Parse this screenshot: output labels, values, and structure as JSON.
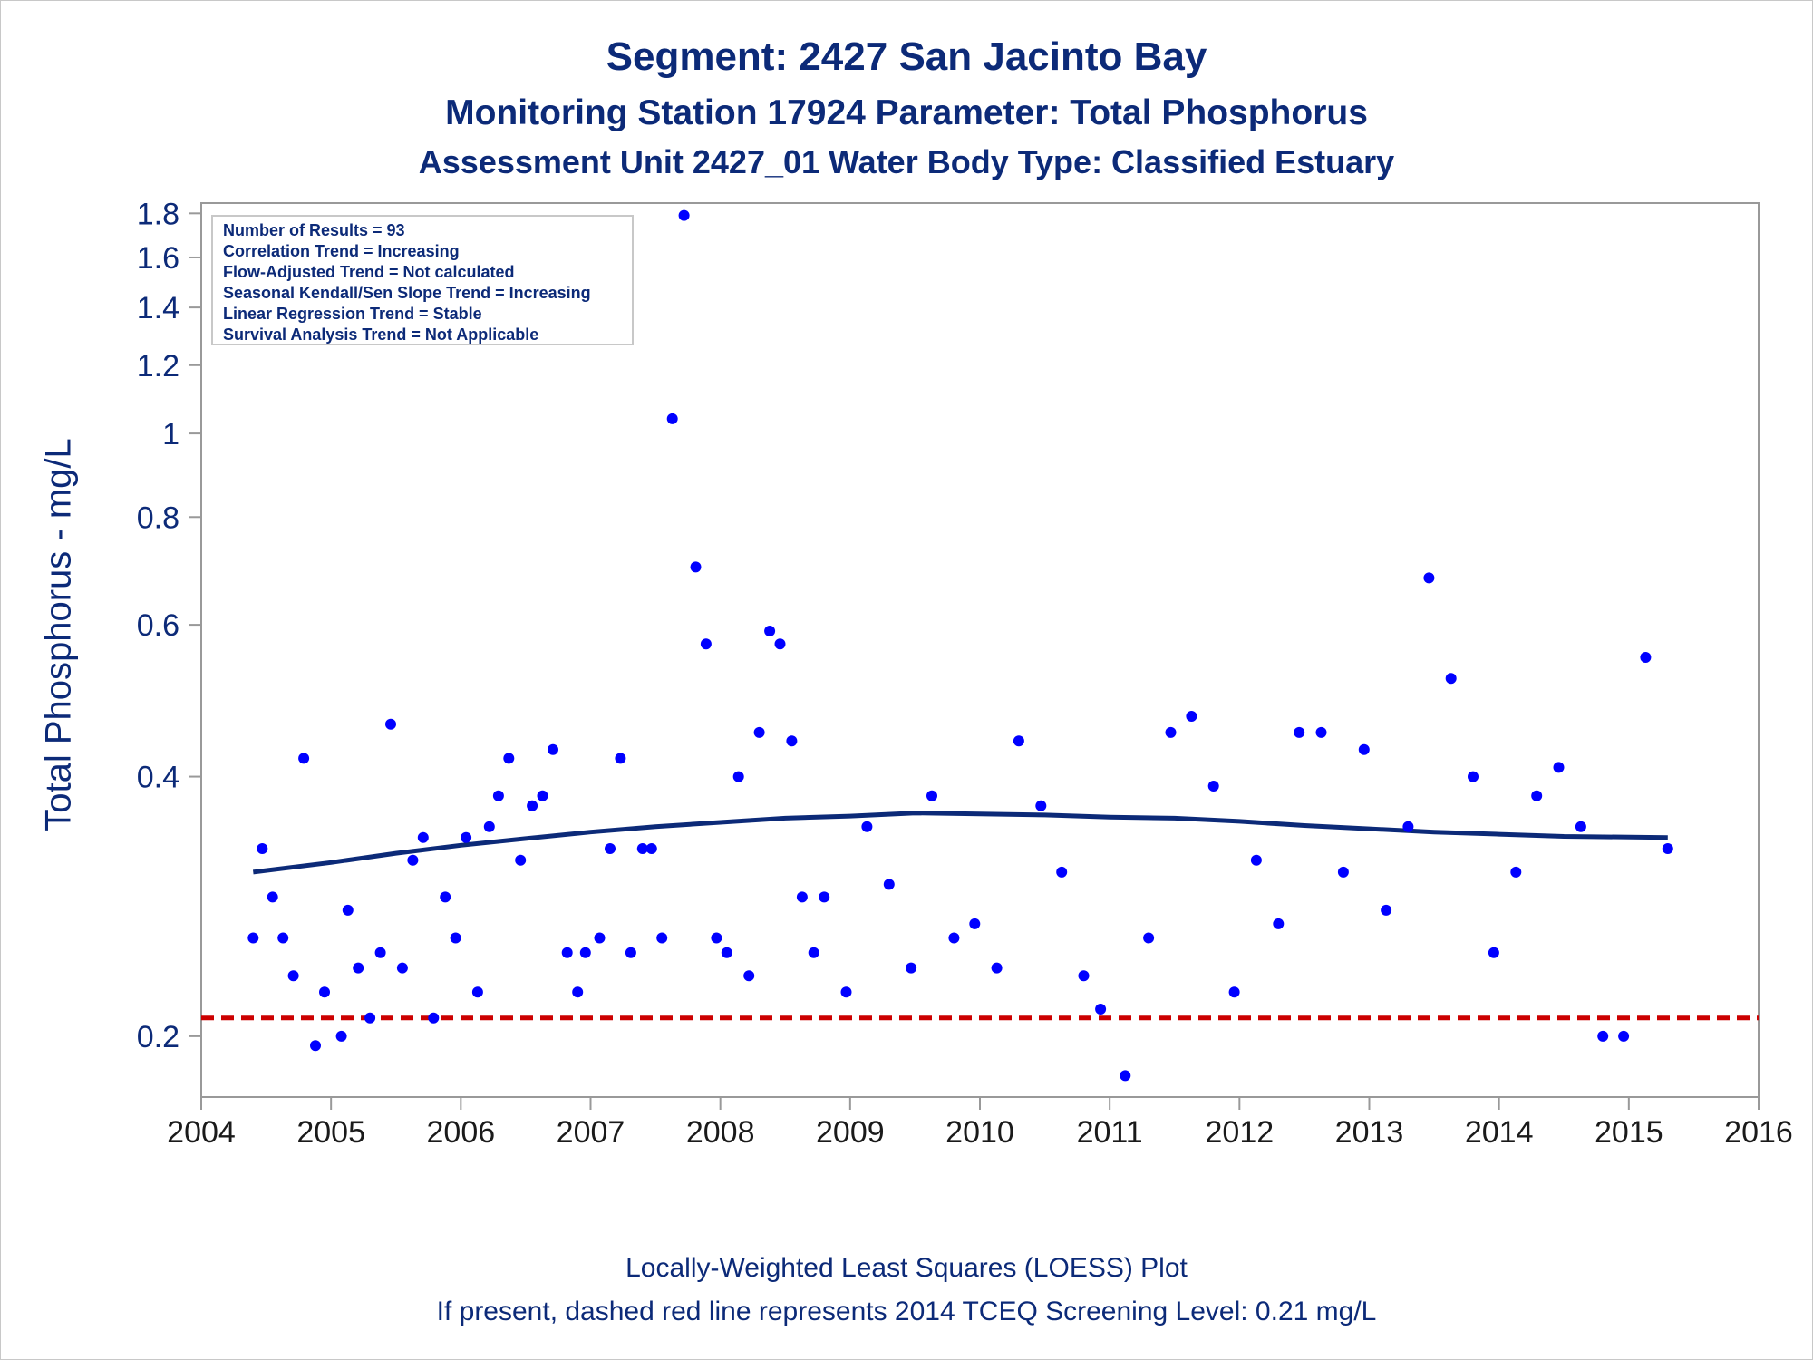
{
  "titles": {
    "line1": "Segment: 2427  San Jacinto Bay",
    "line2": "Monitoring Station 17924 Parameter: Total Phosphorus",
    "line3": "Assessment Unit 2427_01   Water Body Type: Classified Estuary"
  },
  "footnotes": {
    "line1": "Locally-Weighted Least Squares (LOESS) Plot",
    "line2": "If present, dashed red line represents 2014 TCEQ Screening Level: 0.21 mg/L"
  },
  "legend": {
    "lines": [
      "Number of Results = 93",
      "Correlation Trend = Increasing",
      "Flow-Adjusted Trend = Not calculated",
      "Seasonal Kendall/Sen Slope Trend = Increasing",
      "Linear Regression Trend = Stable",
      "Survival Analysis Trend = Not Applicable"
    ]
  },
  "colors": {
    "points": "#0000ff",
    "loess": "#0c2a78",
    "screening": "#cc0000",
    "text": "#0c2a78",
    "axis": "#999999"
  },
  "chart_data": {
    "type": "scatter",
    "title": "Segment: 2427  San Jacinto Bay",
    "xlabel": "",
    "ylabel": "Total Phosphorus - mg/L",
    "xlim": [
      2004,
      2016
    ],
    "ylim": [
      0.17,
      1.85
    ],
    "yscale": "log",
    "xticks": [
      2004,
      2005,
      2006,
      2007,
      2008,
      2009,
      2010,
      2011,
      2012,
      2013,
      2014,
      2015,
      2016
    ],
    "yticks": [
      0.2,
      0.4,
      0.6,
      0.8,
      1,
      1.2,
      1.4,
      1.6,
      1.8
    ],
    "ytick_labels": [
      "0.2",
      "0.4",
      "0.6",
      "0.8",
      "1",
      "1.2",
      "1.4",
      "1.6",
      "1.8"
    ],
    "grid": false,
    "legend_position": "top-left",
    "reference_line": {
      "y": 0.21,
      "style": "dashed",
      "color": "#cc0000"
    },
    "points": [
      [
        2004.4,
        0.26
      ],
      [
        2004.47,
        0.33
      ],
      [
        2004.55,
        0.29
      ],
      [
        2004.63,
        0.26
      ],
      [
        2004.71,
        0.235
      ],
      [
        2004.79,
        0.42
      ],
      [
        2004.88,
        0.195
      ],
      [
        2004.95,
        0.225
      ],
      [
        2005.08,
        0.2
      ],
      [
        2005.13,
        0.28
      ],
      [
        2005.21,
        0.24
      ],
      [
        2005.3,
        0.21
      ],
      [
        2005.38,
        0.25
      ],
      [
        2005.46,
        0.46
      ],
      [
        2005.55,
        0.24
      ],
      [
        2005.63,
        0.32
      ],
      [
        2005.71,
        0.34
      ],
      [
        2005.79,
        0.21
      ],
      [
        2005.88,
        0.29
      ],
      [
        2005.96,
        0.26
      ],
      [
        2006.04,
        0.34
      ],
      [
        2006.13,
        0.225
      ],
      [
        2006.22,
        0.35
      ],
      [
        2006.29,
        0.38
      ],
      [
        2006.37,
        0.42
      ],
      [
        2006.46,
        0.32
      ],
      [
        2006.55,
        0.37
      ],
      [
        2006.63,
        0.38
      ],
      [
        2006.71,
        0.43
      ],
      [
        2006.82,
        0.25
      ],
      [
        2006.9,
        0.225
      ],
      [
        2006.96,
        0.25
      ],
      [
        2007.07,
        0.26
      ],
      [
        2007.15,
        0.33
      ],
      [
        2007.23,
        0.42
      ],
      [
        2007.31,
        0.25
      ],
      [
        2007.4,
        0.33
      ],
      [
        2007.47,
        0.33
      ],
      [
        2007.55,
        0.26
      ],
      [
        2007.63,
        1.04
      ],
      [
        2007.72,
        1.79
      ],
      [
        2007.81,
        0.7
      ],
      [
        2007.89,
        0.57
      ],
      [
        2007.97,
        0.26
      ],
      [
        2008.05,
        0.25
      ],
      [
        2008.14,
        0.4
      ],
      [
        2008.22,
        0.235
      ],
      [
        2008.3,
        0.45
      ],
      [
        2008.38,
        0.59
      ],
      [
        2008.46,
        0.57
      ],
      [
        2008.55,
        0.44
      ],
      [
        2008.63,
        0.29
      ],
      [
        2008.72,
        0.25
      ],
      [
        2008.8,
        0.29
      ],
      [
        2008.97,
        0.225
      ],
      [
        2009.13,
        0.35
      ],
      [
        2009.3,
        0.3
      ],
      [
        2009.47,
        0.24
      ],
      [
        2009.63,
        0.38
      ],
      [
        2009.8,
        0.26
      ],
      [
        2009.96,
        0.27
      ],
      [
        2010.13,
        0.24
      ],
      [
        2010.3,
        0.44
      ],
      [
        2010.47,
        0.37
      ],
      [
        2010.63,
        0.31
      ],
      [
        2010.8,
        0.235
      ],
      [
        2010.93,
        0.215
      ],
      [
        2011.12,
        0.18
      ],
      [
        2011.3,
        0.26
      ],
      [
        2011.47,
        0.45
      ],
      [
        2011.63,
        0.47
      ],
      [
        2011.8,
        0.39
      ],
      [
        2011.96,
        0.225
      ],
      [
        2012.13,
        0.32
      ],
      [
        2012.3,
        0.27
      ],
      [
        2012.46,
        0.45
      ],
      [
        2012.63,
        0.45
      ],
      [
        2012.8,
        0.31
      ],
      [
        2012.96,
        0.43
      ],
      [
        2013.13,
        0.28
      ],
      [
        2013.3,
        0.35
      ],
      [
        2013.46,
        0.68
      ],
      [
        2013.63,
        0.52
      ],
      [
        2013.8,
        0.4
      ],
      [
        2013.96,
        0.25
      ],
      [
        2014.13,
        0.31
      ],
      [
        2014.29,
        0.38
      ],
      [
        2014.46,
        0.41
      ],
      [
        2014.63,
        0.35
      ],
      [
        2014.8,
        0.2
      ],
      [
        2014.96,
        0.2
      ],
      [
        2015.13,
        0.55
      ],
      [
        2015.3,
        0.33
      ]
    ],
    "loess": [
      [
        2004.4,
        0.31
      ],
      [
        2005.0,
        0.318
      ],
      [
        2005.5,
        0.326
      ],
      [
        2006.0,
        0.333
      ],
      [
        2006.5,
        0.339
      ],
      [
        2007.0,
        0.345
      ],
      [
        2007.5,
        0.35
      ],
      [
        2008.0,
        0.354
      ],
      [
        2008.5,
        0.358
      ],
      [
        2009.0,
        0.36
      ],
      [
        2009.5,
        0.363
      ],
      [
        2010.0,
        0.362
      ],
      [
        2010.5,
        0.361
      ],
      [
        2011.0,
        0.359
      ],
      [
        2011.5,
        0.358
      ],
      [
        2012.0,
        0.355
      ],
      [
        2012.5,
        0.351
      ],
      [
        2013.0,
        0.348
      ],
      [
        2013.5,
        0.345
      ],
      [
        2014.0,
        0.343
      ],
      [
        2014.5,
        0.341
      ],
      [
        2015.3,
        0.34
      ]
    ]
  }
}
